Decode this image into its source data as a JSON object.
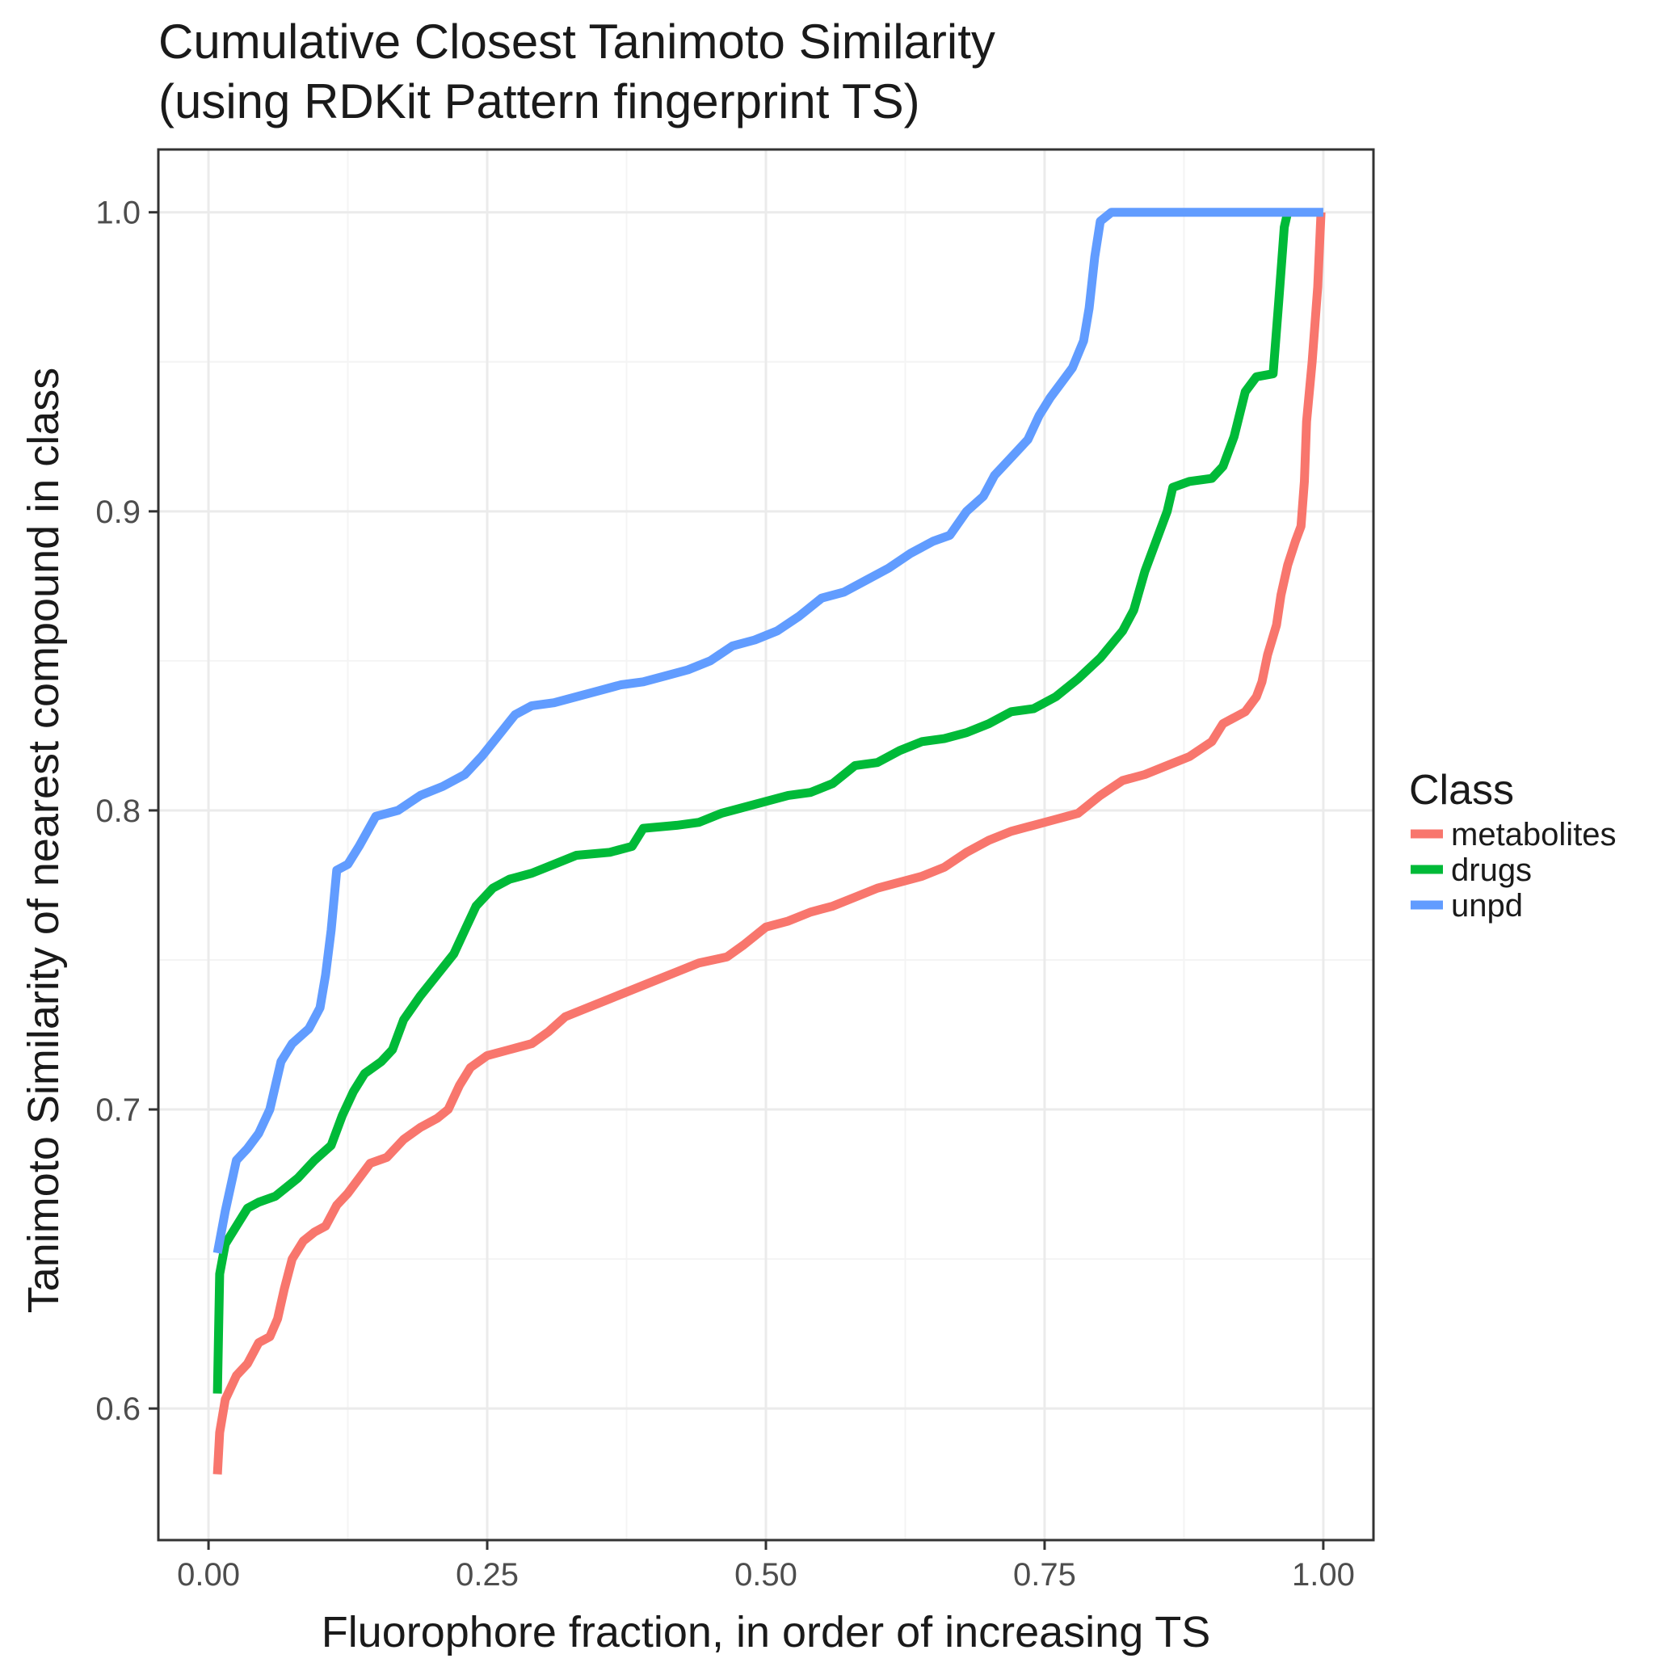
{
  "chart_data": {
    "type": "line",
    "title_line1": "Cumulative Closest Tanimoto Similarity",
    "title_line2": "(using RDKit Pattern fingerprint TS)",
    "xlabel": "Fluorophore fraction, in order of increasing TS",
    "ylabel": "Tanimoto Similarity of nearest compound in class",
    "xlim": [
      -0.045,
      1.045
    ],
    "ylim": [
      0.556,
      1.021
    ],
    "x_ticks": [
      0.0,
      0.25,
      0.5,
      0.75,
      1.0
    ],
    "x_tick_labels": [
      "0.00",
      "0.25",
      "0.50",
      "0.75",
      "1.00"
    ],
    "y_ticks": [
      0.6,
      0.7,
      0.8,
      0.9,
      1.0
    ],
    "y_tick_labels": [
      "0.6",
      "0.7",
      "0.8",
      "0.9",
      "1.0"
    ],
    "legend": {
      "title": "Class",
      "position": "right",
      "entries": [
        "metabolites",
        "drugs",
        "unpd"
      ]
    },
    "series": [
      {
        "name": "metabolites",
        "color": "#F8766D",
        "points": [
          [
            0.008,
            0.578
          ],
          [
            0.01,
            0.592
          ],
          [
            0.015,
            0.603
          ],
          [
            0.025,
            0.611
          ],
          [
            0.035,
            0.615
          ],
          [
            0.045,
            0.622
          ],
          [
            0.055,
            0.624
          ],
          [
            0.062,
            0.63
          ],
          [
            0.068,
            0.64
          ],
          [
            0.075,
            0.65
          ],
          [
            0.085,
            0.656
          ],
          [
            0.095,
            0.659
          ],
          [
            0.105,
            0.661
          ],
          [
            0.115,
            0.668
          ],
          [
            0.125,
            0.672
          ],
          [
            0.135,
            0.677
          ],
          [
            0.145,
            0.682
          ],
          [
            0.16,
            0.684
          ],
          [
            0.175,
            0.69
          ],
          [
            0.19,
            0.694
          ],
          [
            0.205,
            0.697
          ],
          [
            0.215,
            0.7
          ],
          [
            0.225,
            0.708
          ],
          [
            0.235,
            0.714
          ],
          [
            0.25,
            0.718
          ],
          [
            0.27,
            0.72
          ],
          [
            0.29,
            0.722
          ],
          [
            0.305,
            0.726
          ],
          [
            0.32,
            0.731
          ],
          [
            0.34,
            0.734
          ],
          [
            0.36,
            0.737
          ],
          [
            0.38,
            0.74
          ],
          [
            0.4,
            0.743
          ],
          [
            0.42,
            0.746
          ],
          [
            0.44,
            0.749
          ],
          [
            0.465,
            0.751
          ],
          [
            0.48,
            0.755
          ],
          [
            0.5,
            0.761
          ],
          [
            0.52,
            0.763
          ],
          [
            0.54,
            0.766
          ],
          [
            0.56,
            0.768
          ],
          [
            0.58,
            0.771
          ],
          [
            0.6,
            0.774
          ],
          [
            0.62,
            0.776
          ],
          [
            0.64,
            0.778
          ],
          [
            0.66,
            0.781
          ],
          [
            0.68,
            0.786
          ],
          [
            0.7,
            0.79
          ],
          [
            0.72,
            0.793
          ],
          [
            0.74,
            0.795
          ],
          [
            0.76,
            0.797
          ],
          [
            0.78,
            0.799
          ],
          [
            0.8,
            0.805
          ],
          [
            0.82,
            0.81
          ],
          [
            0.84,
            0.812
          ],
          [
            0.86,
            0.815
          ],
          [
            0.88,
            0.818
          ],
          [
            0.9,
            0.823
          ],
          [
            0.91,
            0.829
          ],
          [
            0.93,
            0.833
          ],
          [
            0.94,
            0.838
          ],
          [
            0.945,
            0.843
          ],
          [
            0.95,
            0.852
          ],
          [
            0.958,
            0.862
          ],
          [
            0.962,
            0.872
          ],
          [
            0.968,
            0.882
          ],
          [
            0.975,
            0.89
          ],
          [
            0.98,
            0.895
          ],
          [
            0.983,
            0.91
          ],
          [
            0.985,
            0.93
          ],
          [
            0.99,
            0.95
          ],
          [
            0.995,
            0.975
          ],
          [
            0.998,
            1.0
          ]
        ]
      },
      {
        "name": "drugs",
        "color": "#00BA38",
        "points": [
          [
            0.008,
            0.605
          ],
          [
            0.01,
            0.645
          ],
          [
            0.015,
            0.655
          ],
          [
            0.025,
            0.661
          ],
          [
            0.035,
            0.667
          ],
          [
            0.045,
            0.669
          ],
          [
            0.06,
            0.671
          ],
          [
            0.08,
            0.677
          ],
          [
            0.095,
            0.683
          ],
          [
            0.11,
            0.688
          ],
          [
            0.12,
            0.698
          ],
          [
            0.13,
            0.706
          ],
          [
            0.14,
            0.712
          ],
          [
            0.155,
            0.716
          ],
          [
            0.165,
            0.72
          ],
          [
            0.175,
            0.73
          ],
          [
            0.19,
            0.738
          ],
          [
            0.205,
            0.745
          ],
          [
            0.22,
            0.752
          ],
          [
            0.23,
            0.76
          ],
          [
            0.24,
            0.768
          ],
          [
            0.255,
            0.774
          ],
          [
            0.27,
            0.777
          ],
          [
            0.29,
            0.779
          ],
          [
            0.31,
            0.782
          ],
          [
            0.33,
            0.785
          ],
          [
            0.36,
            0.786
          ],
          [
            0.38,
            0.788
          ],
          [
            0.39,
            0.794
          ],
          [
            0.42,
            0.795
          ],
          [
            0.44,
            0.796
          ],
          [
            0.46,
            0.799
          ],
          [
            0.48,
            0.801
          ],
          [
            0.5,
            0.803
          ],
          [
            0.52,
            0.805
          ],
          [
            0.54,
            0.806
          ],
          [
            0.56,
            0.809
          ],
          [
            0.58,
            0.815
          ],
          [
            0.6,
            0.816
          ],
          [
            0.62,
            0.82
          ],
          [
            0.64,
            0.823
          ],
          [
            0.66,
            0.824
          ],
          [
            0.68,
            0.826
          ],
          [
            0.7,
            0.829
          ],
          [
            0.72,
            0.833
          ],
          [
            0.74,
            0.834
          ],
          [
            0.76,
            0.838
          ],
          [
            0.78,
            0.844
          ],
          [
            0.8,
            0.851
          ],
          [
            0.82,
            0.86
          ],
          [
            0.83,
            0.867
          ],
          [
            0.84,
            0.88
          ],
          [
            0.85,
            0.89
          ],
          [
            0.86,
            0.9
          ],
          [
            0.865,
            0.908
          ],
          [
            0.88,
            0.91
          ],
          [
            0.9,
            0.911
          ],
          [
            0.91,
            0.915
          ],
          [
            0.92,
            0.925
          ],
          [
            0.93,
            0.94
          ],
          [
            0.94,
            0.945
          ],
          [
            0.955,
            0.946
          ],
          [
            0.96,
            0.97
          ],
          [
            0.965,
            0.995
          ],
          [
            0.968,
            1.0
          ]
        ]
      },
      {
        "name": "unpd",
        "color": "#619CFF",
        "points": [
          [
            0.008,
            0.652
          ],
          [
            0.015,
            0.666
          ],
          [
            0.025,
            0.683
          ],
          [
            0.035,
            0.687
          ],
          [
            0.045,
            0.692
          ],
          [
            0.055,
            0.7
          ],
          [
            0.065,
            0.716
          ],
          [
            0.075,
            0.722
          ],
          [
            0.09,
            0.727
          ],
          [
            0.1,
            0.734
          ],
          [
            0.105,
            0.745
          ],
          [
            0.11,
            0.76
          ],
          [
            0.115,
            0.78
          ],
          [
            0.125,
            0.782
          ],
          [
            0.135,
            0.788
          ],
          [
            0.15,
            0.798
          ],
          [
            0.17,
            0.8
          ],
          [
            0.19,
            0.805
          ],
          [
            0.21,
            0.808
          ],
          [
            0.23,
            0.812
          ],
          [
            0.245,
            0.818
          ],
          [
            0.26,
            0.825
          ],
          [
            0.275,
            0.832
          ],
          [
            0.29,
            0.835
          ],
          [
            0.31,
            0.836
          ],
          [
            0.33,
            0.838
          ],
          [
            0.35,
            0.84
          ],
          [
            0.37,
            0.842
          ],
          [
            0.39,
            0.843
          ],
          [
            0.41,
            0.845
          ],
          [
            0.43,
            0.847
          ],
          [
            0.45,
            0.85
          ],
          [
            0.47,
            0.855
          ],
          [
            0.49,
            0.857
          ],
          [
            0.51,
            0.86
          ],
          [
            0.53,
            0.865
          ],
          [
            0.55,
            0.871
          ],
          [
            0.57,
            0.873
          ],
          [
            0.59,
            0.877
          ],
          [
            0.61,
            0.881
          ],
          [
            0.63,
            0.886
          ],
          [
            0.65,
            0.89
          ],
          [
            0.665,
            0.892
          ],
          [
            0.68,
            0.9
          ],
          [
            0.695,
            0.905
          ],
          [
            0.705,
            0.912
          ],
          [
            0.72,
            0.918
          ],
          [
            0.735,
            0.924
          ],
          [
            0.745,
            0.932
          ],
          [
            0.755,
            0.938
          ],
          [
            0.765,
            0.943
          ],
          [
            0.775,
            0.948
          ],
          [
            0.785,
            0.957
          ],
          [
            0.79,
            0.968
          ],
          [
            0.795,
            0.985
          ],
          [
            0.8,
            0.997
          ],
          [
            0.81,
            1.0
          ],
          [
            1.0,
            1.0
          ]
        ]
      }
    ]
  }
}
